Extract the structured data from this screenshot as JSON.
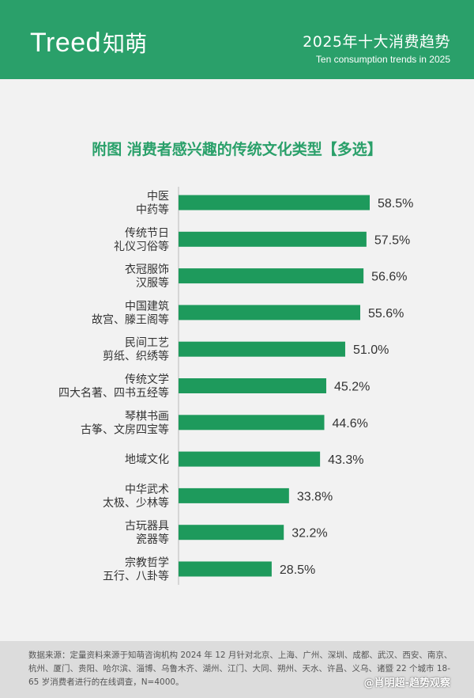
{
  "brand": {
    "logo_en": "Treed",
    "logo_cn": "知萌",
    "report_title": "2025年十大消费趋势",
    "report_subtitle": "Ten consumption trends in 2025"
  },
  "colors": {
    "accent": "#2aa06a",
    "bar": "#1e9a5c",
    "label": "#333333"
  },
  "chart_data": {
    "type": "bar",
    "orientation": "horizontal",
    "title": "附图  消费者感兴趣的传统文化类型【多选】",
    "categories": [
      [
        "中医",
        "中药等"
      ],
      [
        "传统节日",
        "礼仪习俗等"
      ],
      [
        "衣冠服饰",
        "汉服等"
      ],
      [
        "中国建筑",
        "故宫、滕王阁等"
      ],
      [
        "民间工艺",
        "剪纸、织绣等"
      ],
      [
        "传统文学",
        "四大名著、四书五经等"
      ],
      [
        "琴棋书画",
        "古筝、文房四宝等"
      ],
      [
        "地域文化"
      ],
      [
        "中华武术",
        "太极、少林等"
      ],
      [
        "古玩器具",
        "瓷器等"
      ],
      [
        "宗教哲学",
        "五行、八卦等"
      ]
    ],
    "values": [
      58.5,
      57.5,
      56.6,
      55.6,
      51.0,
      45.2,
      44.6,
      43.3,
      33.8,
      32.2,
      28.5
    ],
    "value_labels": [
      "58.5%",
      "57.5%",
      "56.6%",
      "55.6%",
      "51.0%",
      "45.2%",
      "44.6%",
      "43.3%",
      "33.8%",
      "32.2%",
      "28.5%"
    ],
    "unit": "%",
    "xlim": [
      0,
      60
    ],
    "grid": false,
    "legend": "none"
  },
  "footer": {
    "note": "数据来源：定量资料来源于知萌咨询机构 2024 年 12 月针对北京、上海、广州、深圳、成都、武汉、西安、南京、杭州、厦门、贵阳、哈尔滨、淄博、乌鲁木齐、湖州、江门、大同、朔州、天水、许昌、义乌、诸暨 22 个城市 18-65 岁消费者进行的在线调查，N=4000。",
    "signature": "@肖明超-趋势观察"
  }
}
